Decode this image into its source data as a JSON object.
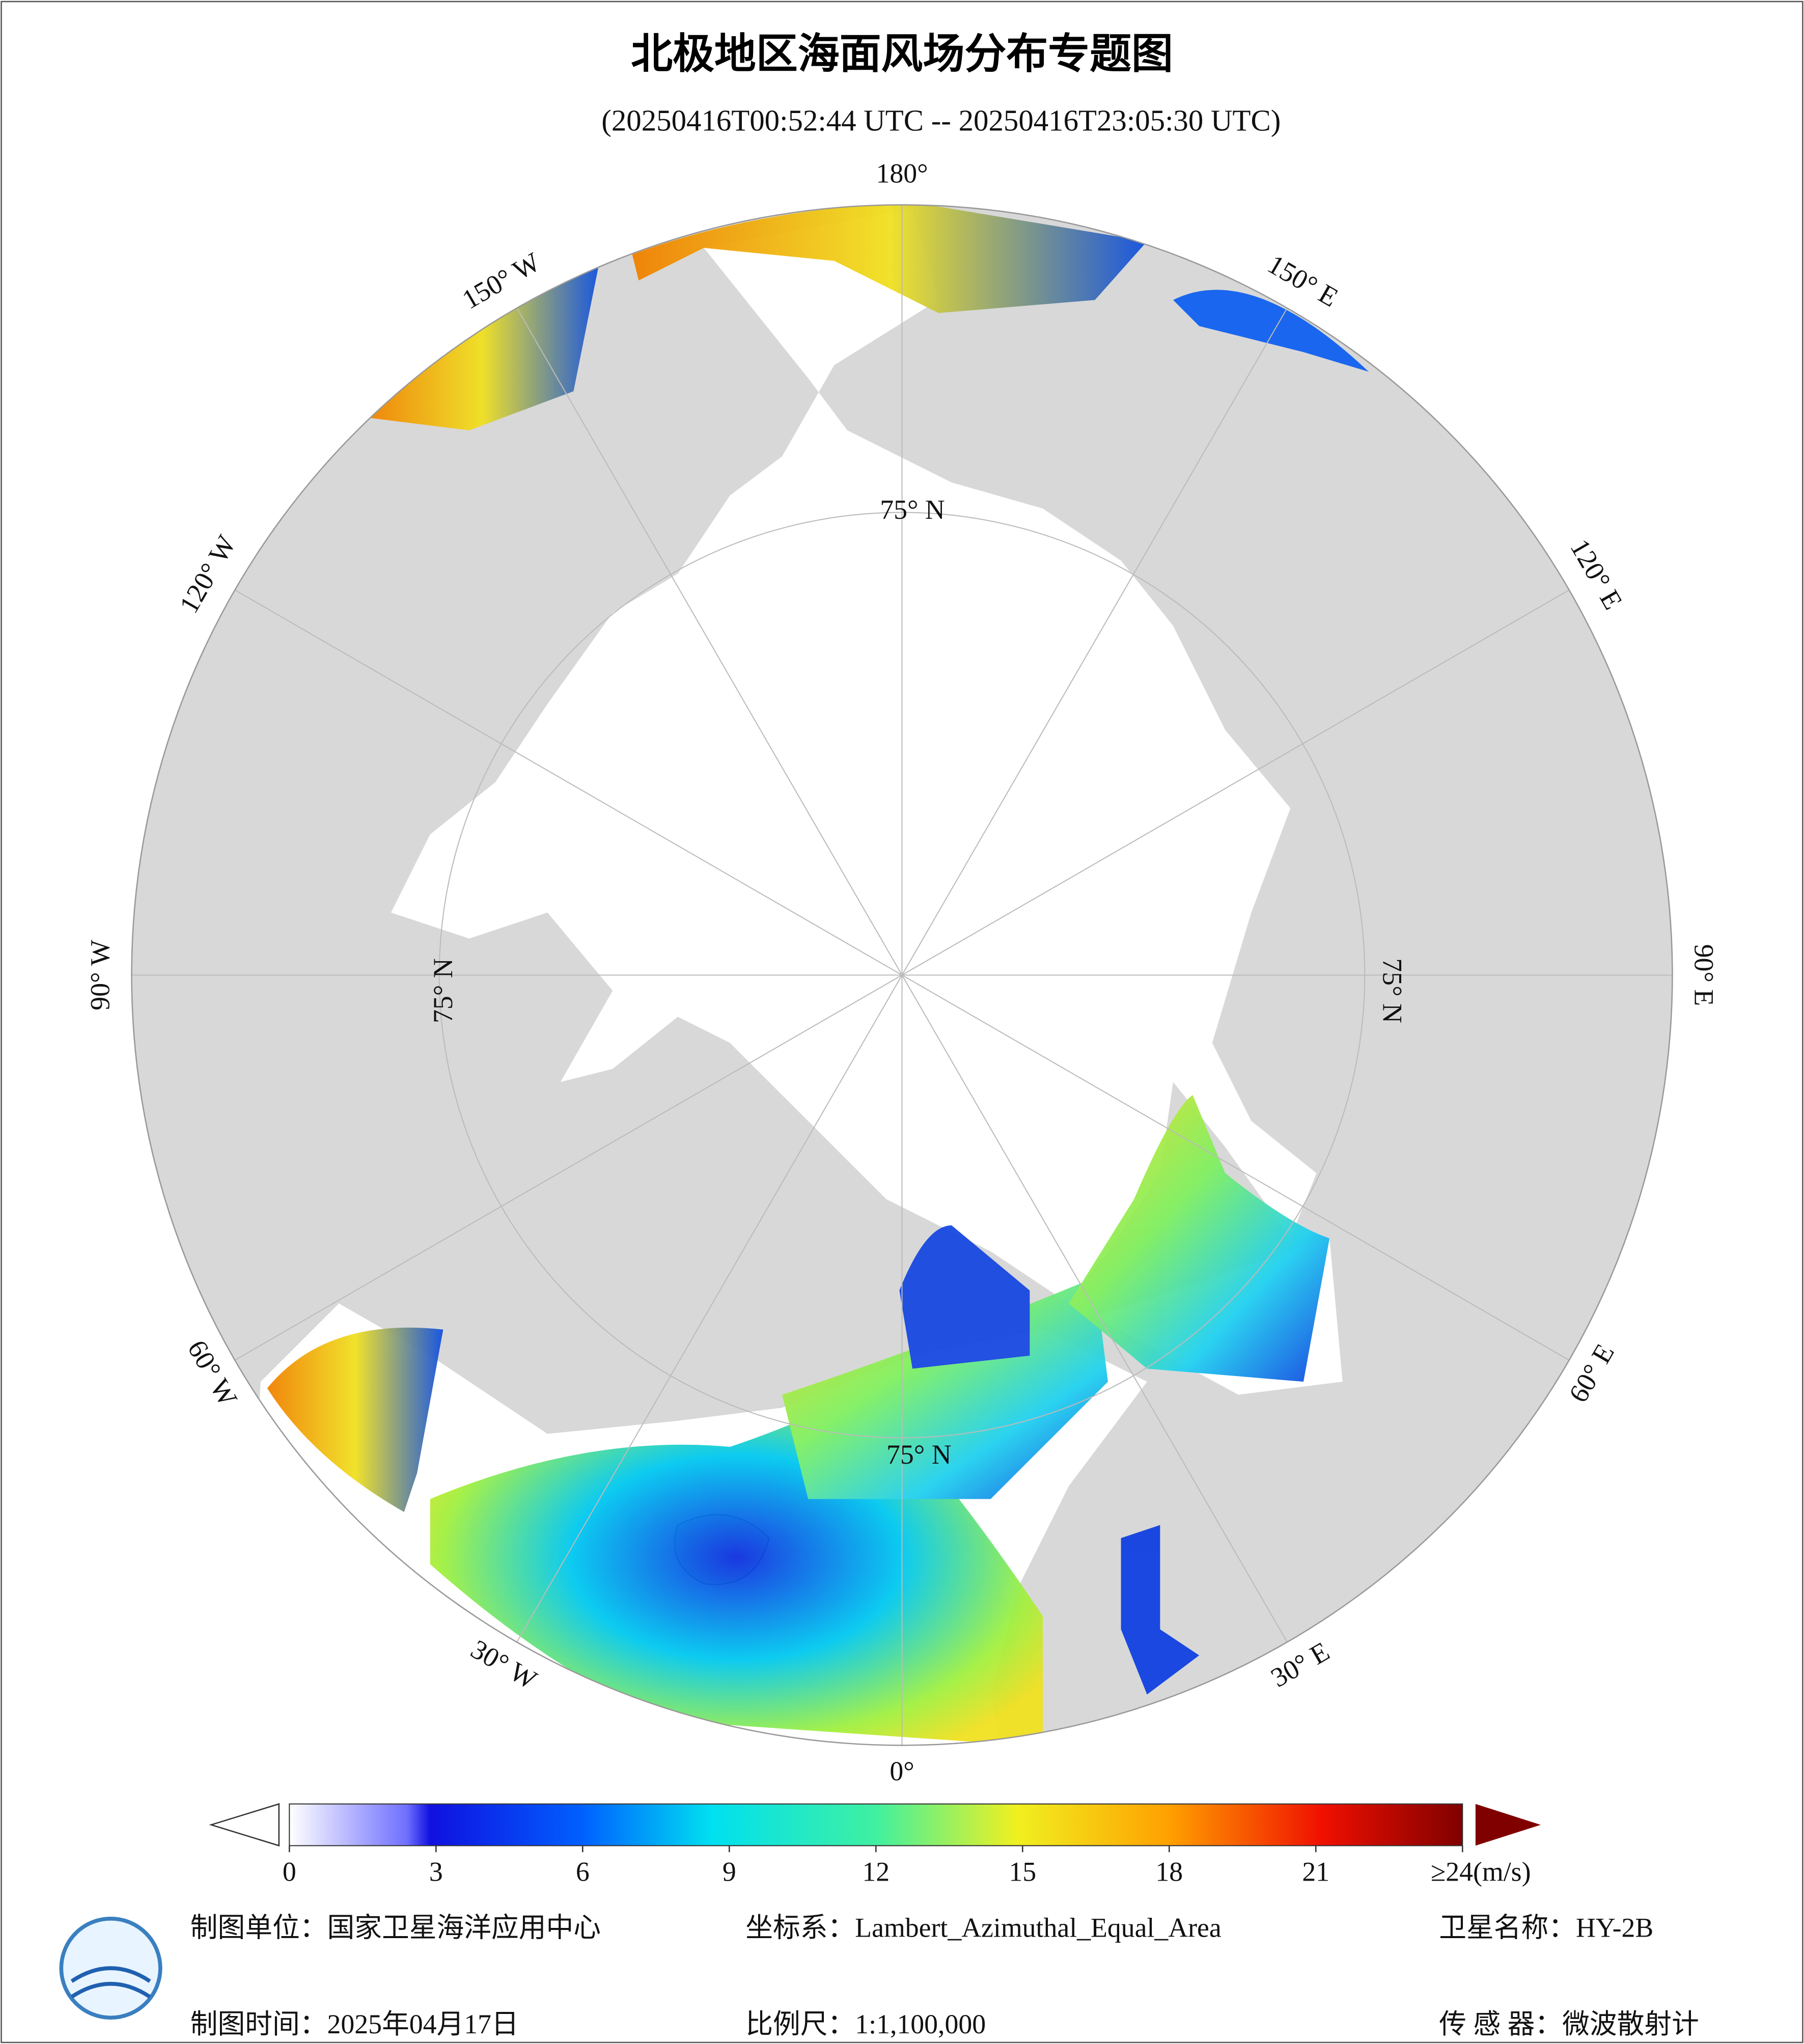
{
  "title": "北极地区海面风场分布专题图",
  "subtitle": "(20250416T00:52:44 UTC -- 20250416T23:05:30 UTC)",
  "graticule": {
    "longitude_labels": [
      "180°",
      "150° W",
      "120° W",
      "90° W",
      "60° W",
      "30° W",
      "0°",
      "30° E",
      "60° E",
      "90° E",
      "120° E",
      "150° E"
    ],
    "latitude_labels": [
      "75° N",
      "75° N",
      "75° N",
      "75° N"
    ]
  },
  "colorbar": {
    "range": [
      0,
      24
    ],
    "ticks": [
      0,
      3,
      6,
      9,
      12,
      15,
      18,
      21,
      {
        "value": 24,
        "label": "≥24(m/s)"
      }
    ]
  },
  "footer": {
    "unit": "制图单位：国家卫星海洋应用中心",
    "date": "制图时间：2025年04月17日",
    "projection": "坐标系：Lambert_Azimuthal_Equal_Area",
    "scale": "比例尺：1:1,100,000",
    "satellite": "卫星名称：HY-2B",
    "sensor": "传 感 器：微波散射计"
  }
}
